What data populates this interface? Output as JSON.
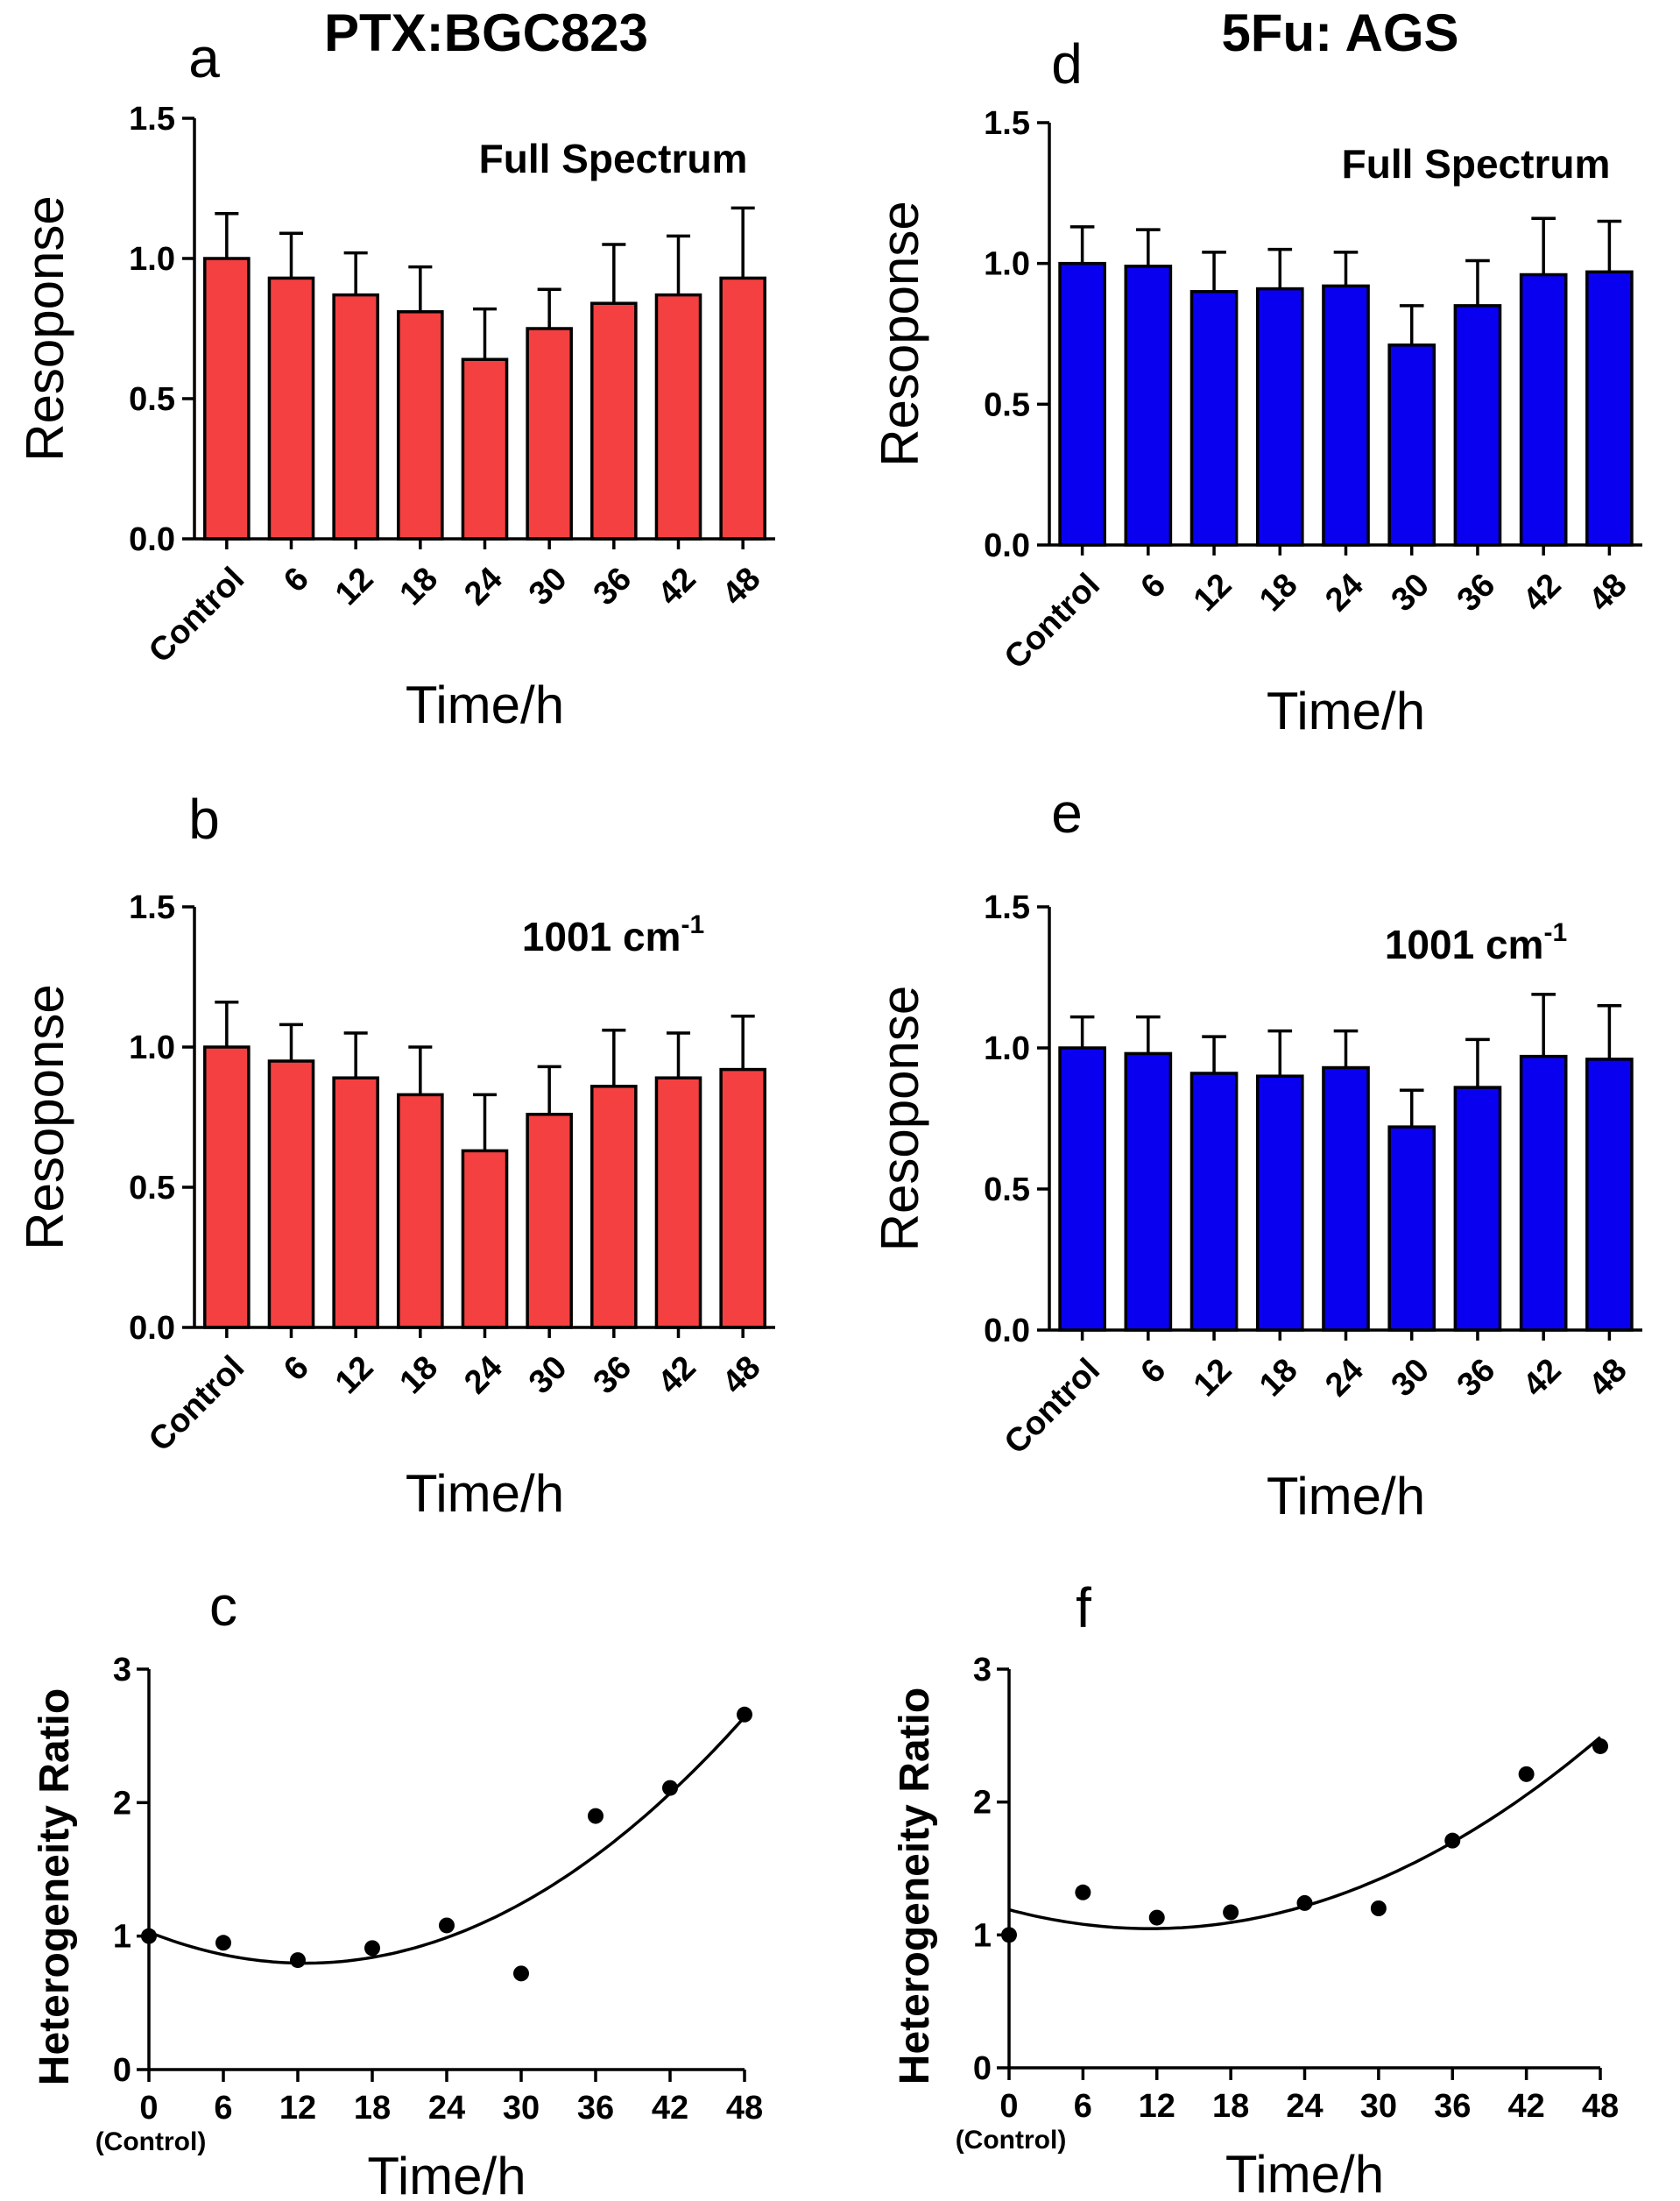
{
  "column_titles": {
    "left": "PTX:BGC823",
    "right": "5Fu: AGS"
  },
  "chart_data": [
    {
      "panel": "a",
      "type": "bar",
      "color": "#f44040",
      "annotation": "Full Spectrum",
      "annotation_sup": "",
      "xlabel": "Time/h",
      "ylabel": "Resoponse",
      "ylim": [
        0,
        1.5
      ],
      "yticks": [
        "0.0",
        "0.5",
        "1.0",
        "1.5"
      ],
      "categories": [
        "Control",
        "6",
        "12",
        "18",
        "24",
        "30",
        "36",
        "42",
        "48"
      ],
      "values": [
        1.0,
        0.93,
        0.87,
        0.81,
        0.64,
        0.75,
        0.84,
        0.87,
        0.93
      ],
      "errors": [
        0.16,
        0.16,
        0.15,
        0.16,
        0.18,
        0.14,
        0.21,
        0.21,
        0.25
      ]
    },
    {
      "panel": "b",
      "type": "bar",
      "color": "#f44040",
      "annotation": "1001 cm",
      "annotation_sup": "-1",
      "xlabel": "Time/h",
      "ylabel": "Resoponse",
      "ylim": [
        0,
        1.5
      ],
      "yticks": [
        "0.0",
        "0.5",
        "1.0",
        "1.5"
      ],
      "categories": [
        "Control",
        "6",
        "12",
        "18",
        "24",
        "30",
        "36",
        "42",
        "48"
      ],
      "values": [
        1.0,
        0.95,
        0.89,
        0.83,
        0.63,
        0.76,
        0.86,
        0.89,
        0.92
      ],
      "errors": [
        0.16,
        0.13,
        0.16,
        0.17,
        0.2,
        0.17,
        0.2,
        0.16,
        0.19
      ]
    },
    {
      "panel": "c",
      "type": "scatter",
      "xlabel": "Time/h",
      "ylabel": "Heterogeneity Ratio",
      "xlim": [
        0,
        48
      ],
      "ylim": [
        0,
        3
      ],
      "xticks": [
        "0",
        "6",
        "12",
        "18",
        "24",
        "30",
        "36",
        "42",
        "48"
      ],
      "yticks": [
        "0",
        "1",
        "2",
        "3"
      ],
      "x_sub_label": "(Control)",
      "x": [
        0,
        6,
        12,
        18,
        24,
        30,
        36,
        42,
        48
      ],
      "y": [
        1.0,
        0.95,
        0.82,
        0.91,
        1.08,
        0.72,
        1.9,
        2.11,
        2.66
      ],
      "fit": {
        "type": "quadratic",
        "coefficients": [
          1.03,
          -0.037,
          0.00147
        ]
      }
    },
    {
      "panel": "d",
      "type": "bar",
      "color": "#0a00f0",
      "annotation": "Full Spectrum",
      "annotation_sup": "",
      "xlabel": "Time/h",
      "ylabel": "Resoponse",
      "ylim": [
        0,
        1.5
      ],
      "yticks": [
        "0.0",
        "0.5",
        "1.0",
        "1.5"
      ],
      "categories": [
        "Control",
        "6",
        "12",
        "18",
        "24",
        "30",
        "36",
        "42",
        "48"
      ],
      "values": [
        1.0,
        0.99,
        0.9,
        0.91,
        0.92,
        0.71,
        0.85,
        0.96,
        0.97
      ],
      "errors": [
        0.13,
        0.13,
        0.14,
        0.14,
        0.12,
        0.14,
        0.16,
        0.2,
        0.18
      ]
    },
    {
      "panel": "e",
      "type": "bar",
      "color": "#0a00f0",
      "annotation": "1001 cm",
      "annotation_sup": "-1",
      "xlabel": "Time/h",
      "ylabel": "Resoponse",
      "ylim": [
        0,
        1.5
      ],
      "yticks": [
        "0.0",
        "0.5",
        "1.0",
        "1.5"
      ],
      "categories": [
        "Control",
        "6",
        "12",
        "18",
        "24",
        "30",
        "36",
        "42",
        "48"
      ],
      "values": [
        1.0,
        0.98,
        0.91,
        0.9,
        0.93,
        0.72,
        0.86,
        0.97,
        0.96
      ],
      "errors": [
        0.11,
        0.13,
        0.13,
        0.16,
        0.13,
        0.13,
        0.17,
        0.22,
        0.19
      ]
    },
    {
      "panel": "f",
      "type": "scatter",
      "xlabel": "Time/h",
      "ylabel": "Heterogeneity Ratio",
      "xlim": [
        0,
        48
      ],
      "ylim": [
        0,
        3
      ],
      "xticks": [
        "0",
        "6",
        "12",
        "18",
        "24",
        "30",
        "36",
        "42",
        "48"
      ],
      "yticks": [
        "0",
        "1",
        "2",
        "3"
      ],
      "x_sub_label": "(Control)",
      "x": [
        0,
        6,
        12,
        18,
        24,
        30,
        36,
        42,
        48
      ],
      "y": [
        1.0,
        1.32,
        1.13,
        1.17,
        1.24,
        1.2,
        1.71,
        2.21,
        2.42
      ],
      "fit": {
        "type": "quadratic",
        "coefficients": [
          1.19,
          -0.0248,
          0.00108
        ]
      }
    }
  ]
}
